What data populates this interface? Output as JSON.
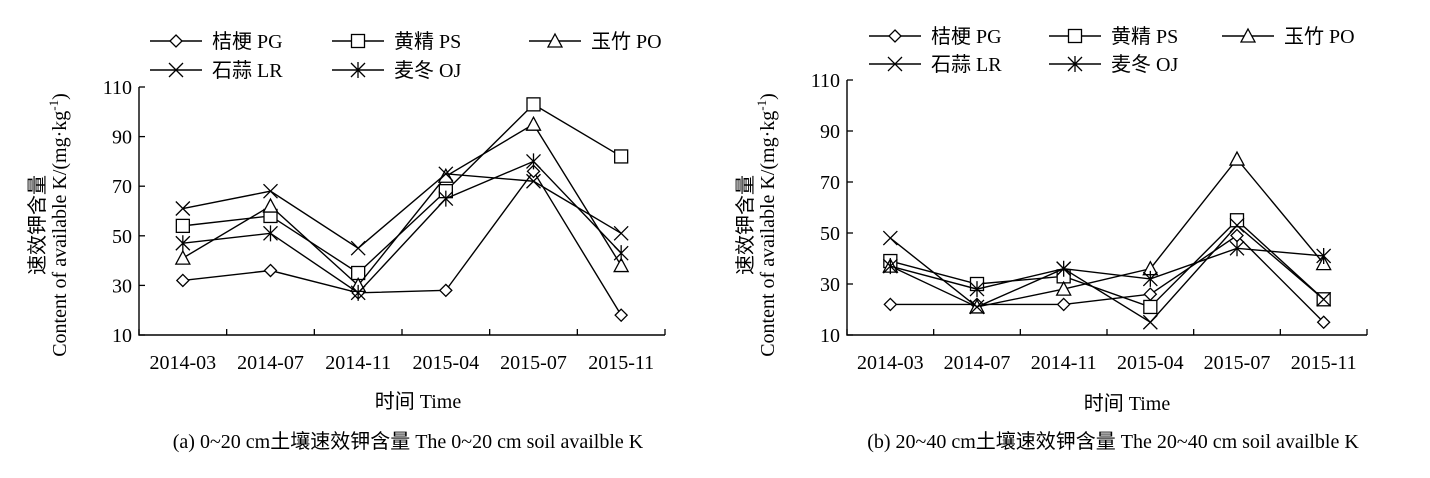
{
  "chart_data": [
    {
      "type": "line",
      "panel": "a",
      "caption": "(a) 0~20 cm土壤速效钾含量  The  0~20 cm soil availble K",
      "xlabel": "时间  Time",
      "ylabel_cn": "速效钾含量",
      "ylabel_en": "Content of available K/(mg·kg",
      "ylabel_sup": "-1",
      "ylabel_close": ")",
      "categories": [
        "2014-03",
        "2014-07",
        "2014-11",
        "2015-04",
        "2015-07",
        "2015-11"
      ],
      "ylim": [
        10,
        110
      ],
      "yticks": [
        10,
        30,
        50,
        70,
        90,
        110
      ],
      "series": [
        {
          "name": "桔梗 PG",
          "marker": "diamond",
          "values": [
            32,
            36,
            27,
            28,
            76,
            18
          ]
        },
        {
          "name": "黄精 PS",
          "marker": "square",
          "values": [
            54,
            58,
            35,
            68,
            103,
            82
          ]
        },
        {
          "name": "玉竹 PO",
          "marker": "triangle",
          "values": [
            41,
            62,
            30,
            74,
            95,
            38
          ]
        },
        {
          "name": "石蒜 LR",
          "marker": "x",
          "values": [
            61,
            68,
            45,
            75,
            72,
            51
          ]
        },
        {
          "name": "麦冬 OJ",
          "marker": "star",
          "values": [
            47,
            51,
            27,
            65,
            80,
            43
          ]
        }
      ]
    },
    {
      "type": "line",
      "panel": "b",
      "caption": "(b) 20~40 cm土壤速效钾含量  The  20~40 cm soil availble K",
      "xlabel": "时间  Time",
      "ylabel_cn": "速效钾含量",
      "ylabel_en": "Content of available K/(mg·kg",
      "ylabel_sup": "-1",
      "ylabel_close": ")",
      "categories": [
        "2014-03",
        "2014-07",
        "2014-11",
        "2015-04",
        "2015-07",
        "2015-11"
      ],
      "ylim": [
        10,
        110
      ],
      "yticks": [
        10,
        30,
        50,
        70,
        90,
        110
      ],
      "series": [
        {
          "name": "桔梗 PG",
          "marker": "diamond",
          "values": [
            22,
            22,
            22,
            26,
            49,
            15
          ]
        },
        {
          "name": "黄精 PS",
          "marker": "square",
          "values": [
            39,
            30,
            33,
            21,
            55,
            24
          ]
        },
        {
          "name": "玉竹 PO",
          "marker": "triangle",
          "values": [
            37,
            21,
            28,
            36,
            79,
            38
          ]
        },
        {
          "name": "石蒜 LR",
          "marker": "x",
          "values": [
            48,
            21,
            36,
            15,
            53,
            24
          ]
        },
        {
          "name": "麦冬 OJ",
          "marker": "star",
          "values": [
            37,
            28,
            36,
            32,
            44,
            41
          ]
        }
      ]
    }
  ]
}
